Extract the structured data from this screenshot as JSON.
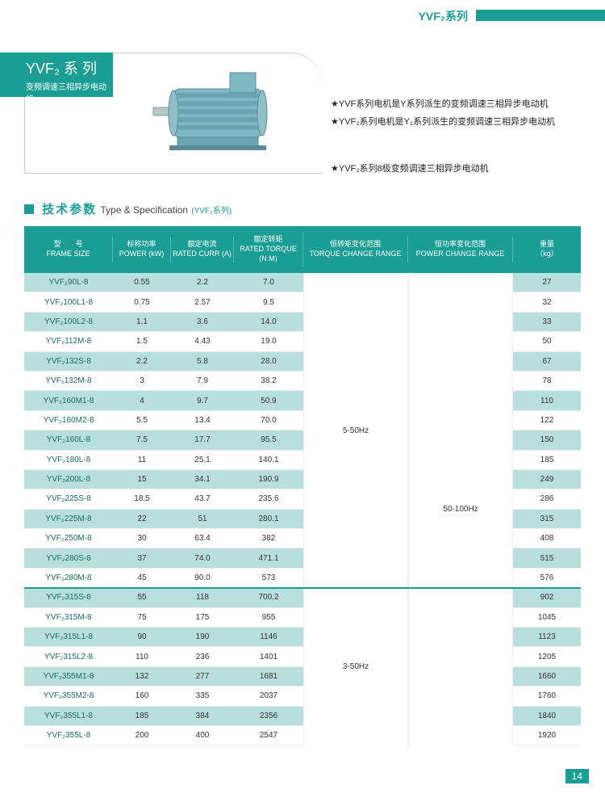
{
  "header": {
    "series_label": "YVF₂系列"
  },
  "product": {
    "title_main": "YVF₂ 系 列",
    "title_sub": "变频调速三相异步电动机"
  },
  "bullets": {
    "b1": "★YVF系列电机是Y系列派生的变频调速三相异步电动机",
    "b2": "★YVF₂系列电机是Y₂系列派生的变频调速三相异步电动机",
    "b3": "★YVF₂系列8极变频调速三相异步电动机"
  },
  "spec_heading": {
    "cn": "技术参数",
    "en": "Type & Specification",
    "suffix": "(YVF₂系列)"
  },
  "columns": {
    "c0_cn": "型　　号",
    "c0_en": "FRAME SIZE",
    "c1_cn": "标称功率",
    "c1_en": "POWER (kW)",
    "c2_cn": "额定电流",
    "c2_en": "RATED CURR (A)",
    "c3_cn": "额定转矩",
    "c3_en": "RATED TORQUE (N.M)",
    "c4_cn": "恒转矩变化范围",
    "c4_en": "TORQUE CHANGE RANGE",
    "c5_cn": "恒功率变化范围",
    "c5_en": "POWER CHANGE RANGE",
    "c6_cn": "重量",
    "c6_en": "（kg）"
  },
  "merged": {
    "torque1": "5-50Hz",
    "torque2": "3-50Hz",
    "power_all": "50-100Hz"
  },
  "rows": [
    {
      "frame": "YVF₂90L-8",
      "kw": "0.55",
      "a": "2.2",
      "nm": "7.0",
      "kg": "27",
      "alt": true,
      "group": 1
    },
    {
      "frame": "YVF₂100L1-8",
      "kw": "0.75",
      "a": "2.57",
      "nm": "9.5",
      "kg": "32",
      "alt": false,
      "group": 1
    },
    {
      "frame": "YVF₂100L2-8",
      "kw": "1.1",
      "a": "3.6",
      "nm": "14.0",
      "kg": "33",
      "alt": true,
      "group": 1
    },
    {
      "frame": "YVF₂112M-8",
      "kw": "1.5",
      "a": "4.43",
      "nm": "19.0",
      "kg": "50",
      "alt": false,
      "group": 1
    },
    {
      "frame": "YVF₂132S-8",
      "kw": "2.2",
      "a": "5.8",
      "nm": "28.0",
      "kg": "67",
      "alt": true,
      "group": 1
    },
    {
      "frame": "YVF₂132M-8",
      "kw": "3",
      "a": "7.9",
      "nm": "38.2",
      "kg": "78",
      "alt": false,
      "group": 1
    },
    {
      "frame": "YVF₂160M1-8",
      "kw": "4",
      "a": "9.7",
      "nm": "50.9",
      "kg": "110",
      "alt": true,
      "group": 1
    },
    {
      "frame": "YVF₂160M2-8",
      "kw": "5.5",
      "a": "13.4",
      "nm": "70.0",
      "kg": "122",
      "alt": false,
      "group": 1
    },
    {
      "frame": "YVF₂160L-8",
      "kw": "7.5",
      "a": "17.7",
      "nm": "95.5",
      "kg": "150",
      "alt": true,
      "group": 1
    },
    {
      "frame": "YVF₂180L-8",
      "kw": "11",
      "a": "25.1",
      "nm": "140.1",
      "kg": "185",
      "alt": false,
      "group": 1
    },
    {
      "frame": "YVF₂200L-8",
      "kw": "15",
      "a": "34.1",
      "nm": "190.9",
      "kg": "249",
      "alt": true,
      "group": 1
    },
    {
      "frame": "YVF₂225S-8",
      "kw": "18.5",
      "a": "43.7",
      "nm": "235.6",
      "kg": "286",
      "alt": false,
      "group": 1
    },
    {
      "frame": "YVF₂225M-8",
      "kw": "22",
      "a": "51",
      "nm": "280.1",
      "kg": "315",
      "alt": true,
      "group": 1
    },
    {
      "frame": "YVF₂250M-8",
      "kw": "30",
      "a": "63.4",
      "nm": "382",
      "kg": "408",
      "alt": false,
      "group": 1
    },
    {
      "frame": "YVF₂280S-8",
      "kw": "37",
      "a": "74.0",
      "nm": "471.1",
      "kg": "515",
      "alt": true,
      "group": 1
    },
    {
      "frame": "YVF₂280M-8",
      "kw": "45",
      "a": "90.0",
      "nm": "573",
      "kg": "576",
      "alt": false,
      "group": 1
    },
    {
      "frame": "YVF₂315S-8",
      "kw": "55",
      "a": "118",
      "nm": "700.2",
      "kg": "902",
      "alt": true,
      "group": 2
    },
    {
      "frame": "YVF₂315M-8",
      "kw": "75",
      "a": "175",
      "nm": "955",
      "kg": "1045",
      "alt": false,
      "group": 2
    },
    {
      "frame": "YVF₂315L1-8",
      "kw": "90",
      "a": "190",
      "nm": "1146",
      "kg": "1123",
      "alt": true,
      "group": 2
    },
    {
      "frame": "YVF₂315L2-8",
      "kw": "110",
      "a": "236",
      "nm": "1401",
      "kg": "1205",
      "alt": false,
      "group": 2
    },
    {
      "frame": "YVF₂355M1-8",
      "kw": "132",
      "a": "277",
      "nm": "1681",
      "kg": "1660",
      "alt": true,
      "group": 2
    },
    {
      "frame": "YVF₂355M2-8",
      "kw": "160",
      "a": "335",
      "nm": "2037",
      "kg": "1760",
      "alt": false,
      "group": 2
    },
    {
      "frame": "YVF₂355L1-8",
      "kw": "185",
      "a": "384",
      "nm": "2356",
      "kg": "1840",
      "alt": true,
      "group": 2
    },
    {
      "frame": "YVF₂355L-8",
      "kw": "200",
      "a": "400",
      "nm": "2547",
      "kg": "1920",
      "alt": false,
      "group": 2
    }
  ],
  "layout": {
    "row_h": 24.4,
    "group1_rows": 16,
    "group2_rows": 8,
    "colors": {
      "teal": "#1a9e94",
      "row_alt": "#b8dfdc",
      "text": "#333333"
    }
  },
  "page_number": "14"
}
